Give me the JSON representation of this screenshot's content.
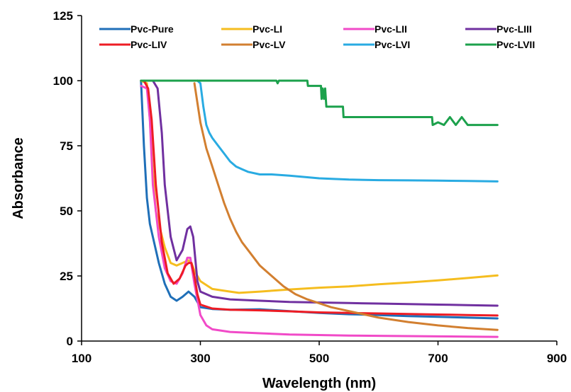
{
  "chart_data": {
    "type": "line",
    "xlabel": "Wavelength (nm)",
    "ylabel": "Absorbance",
    "xlim": [
      100,
      900
    ],
    "ylim": [
      0,
      125
    ],
    "xticks": [
      100,
      300,
      500,
      700,
      900
    ],
    "yticks": [
      0,
      25,
      50,
      75,
      100,
      125
    ],
    "grid": false,
    "legend_position": "top",
    "series": [
      {
        "name": "Pvc-Pure",
        "color": "#1f6fb8",
        "x": [
          200,
          205,
          210,
          215,
          220,
          230,
          240,
          250,
          260,
          270,
          280,
          290,
          300,
          320,
          350,
          400,
          450,
          500,
          550,
          600,
          650,
          700,
          750,
          800
        ],
        "y": [
          100,
          75,
          55,
          45,
          40,
          30,
          22,
          17,
          15.5,
          17,
          19,
          17,
          13,
          12.3,
          12,
          12.2,
          11.5,
          10.8,
          10.3,
          10,
          9.6,
          9.3,
          9,
          8.7
        ]
      },
      {
        "name": "Pvc-LI",
        "color": "#f5bd1f",
        "x": [
          200,
          210,
          215,
          220,
          225,
          230,
          240,
          250,
          260,
          270,
          280,
          285,
          290,
          300,
          320,
          350,
          365,
          400,
          450,
          500,
          550,
          600,
          650,
          700,
          750,
          800
        ],
        "y": [
          100,
          99,
          85,
          65,
          50,
          45,
          36,
          30,
          29,
          30,
          31,
          30,
          27,
          23,
          20,
          19,
          18.5,
          19,
          19.8,
          20.5,
          21,
          21.8,
          22.5,
          23.3,
          24.2,
          25.2
        ]
      },
      {
        "name": "Pvc-LII",
        "color": "#f14ac8",
        "x": [
          200,
          210,
          215,
          220,
          230,
          240,
          250,
          260,
          270,
          278,
          283,
          290,
          300,
          310,
          320,
          350,
          400,
          450,
          500,
          550,
          600,
          650,
          700,
          750,
          800
        ],
        "y": [
          98,
          97,
          85,
          60,
          40,
          28,
          23,
          22,
          26,
          32,
          32,
          22,
          10,
          6,
          4.5,
          3.5,
          3,
          2.5,
          2.3,
          2.1,
          2,
          1.9,
          1.8,
          1.7,
          1.6
        ]
      },
      {
        "name": "Pvc-LIII",
        "color": "#7030a0",
        "x": [
          210,
          220,
          228,
          235,
          240,
          250,
          260,
          270,
          278,
          283,
          288,
          295,
          300,
          320,
          350,
          400,
          450,
          500,
          550,
          600,
          650,
          700,
          750,
          800
        ],
        "y": [
          100,
          100,
          97,
          80,
          60,
          40,
          31,
          35,
          43,
          44,
          40,
          23,
          19,
          17,
          16,
          15.5,
          15,
          14.8,
          14.6,
          14.4,
          14.2,
          14,
          13.8,
          13.6
        ]
      },
      {
        "name": "Pvc-LIV",
        "color": "#ee1c24",
        "x": [
          205,
          212,
          218,
          225,
          235,
          245,
          255,
          265,
          275,
          280,
          285,
          290,
          295,
          300,
          320,
          350,
          400,
          450,
          500,
          550,
          600,
          650,
          700,
          750,
          800
        ],
        "y": [
          100,
          97,
          85,
          60,
          38,
          26,
          22,
          24,
          29,
          30,
          30,
          25,
          18,
          14,
          12.5,
          12,
          11.8,
          11.4,
          11,
          10.8,
          10.6,
          10.4,
          10.2,
          10,
          9.8
        ]
      },
      {
        "name": "Pvc-LV",
        "color": "#d27f30",
        "x": [
          290,
          300,
          310,
          320,
          330,
          340,
          350,
          360,
          370,
          380,
          400,
          420,
          440,
          460,
          480,
          500,
          520,
          540,
          560,
          580,
          600,
          650,
          700,
          750,
          800
        ],
        "y": [
          99,
          84,
          74,
          67,
          60,
          53,
          47,
          42,
          38,
          35,
          29,
          25,
          21,
          18,
          16,
          14.5,
          13,
          12,
          11,
          10,
          9,
          7.3,
          6,
          5,
          4.3
        ]
      },
      {
        "name": "Pvc-LVI",
        "color": "#29abe2",
        "x": [
          295,
          300,
          305,
          310,
          315,
          320,
          330,
          340,
          350,
          360,
          370,
          380,
          400,
          420,
          450,
          500,
          550,
          600,
          650,
          700,
          750,
          800
        ],
        "y": [
          100,
          99,
          90,
          83,
          80,
          78,
          75,
          72,
          69,
          67,
          66,
          65,
          64,
          64,
          63.5,
          62.5,
          62,
          61.8,
          61.7,
          61.6,
          61.5,
          61.3
        ]
      },
      {
        "name": "Pvc-LVII",
        "color": "#1ca14c",
        "x": [
          200,
          300,
          400,
          428,
          430,
          432,
          480,
          481,
          503,
          504,
          506,
          508,
          510,
          512,
          540,
          541,
          690,
          691,
          700,
          710,
          720,
          730,
          740,
          750,
          751,
          800
        ],
        "y": [
          100,
          100,
          100,
          100,
          99,
          100,
          100,
          98,
          98,
          93,
          97,
          93,
          97,
          90,
          90,
          86,
          86,
          83,
          84,
          83,
          86,
          83,
          86,
          83,
          83,
          83
        ]
      }
    ]
  }
}
